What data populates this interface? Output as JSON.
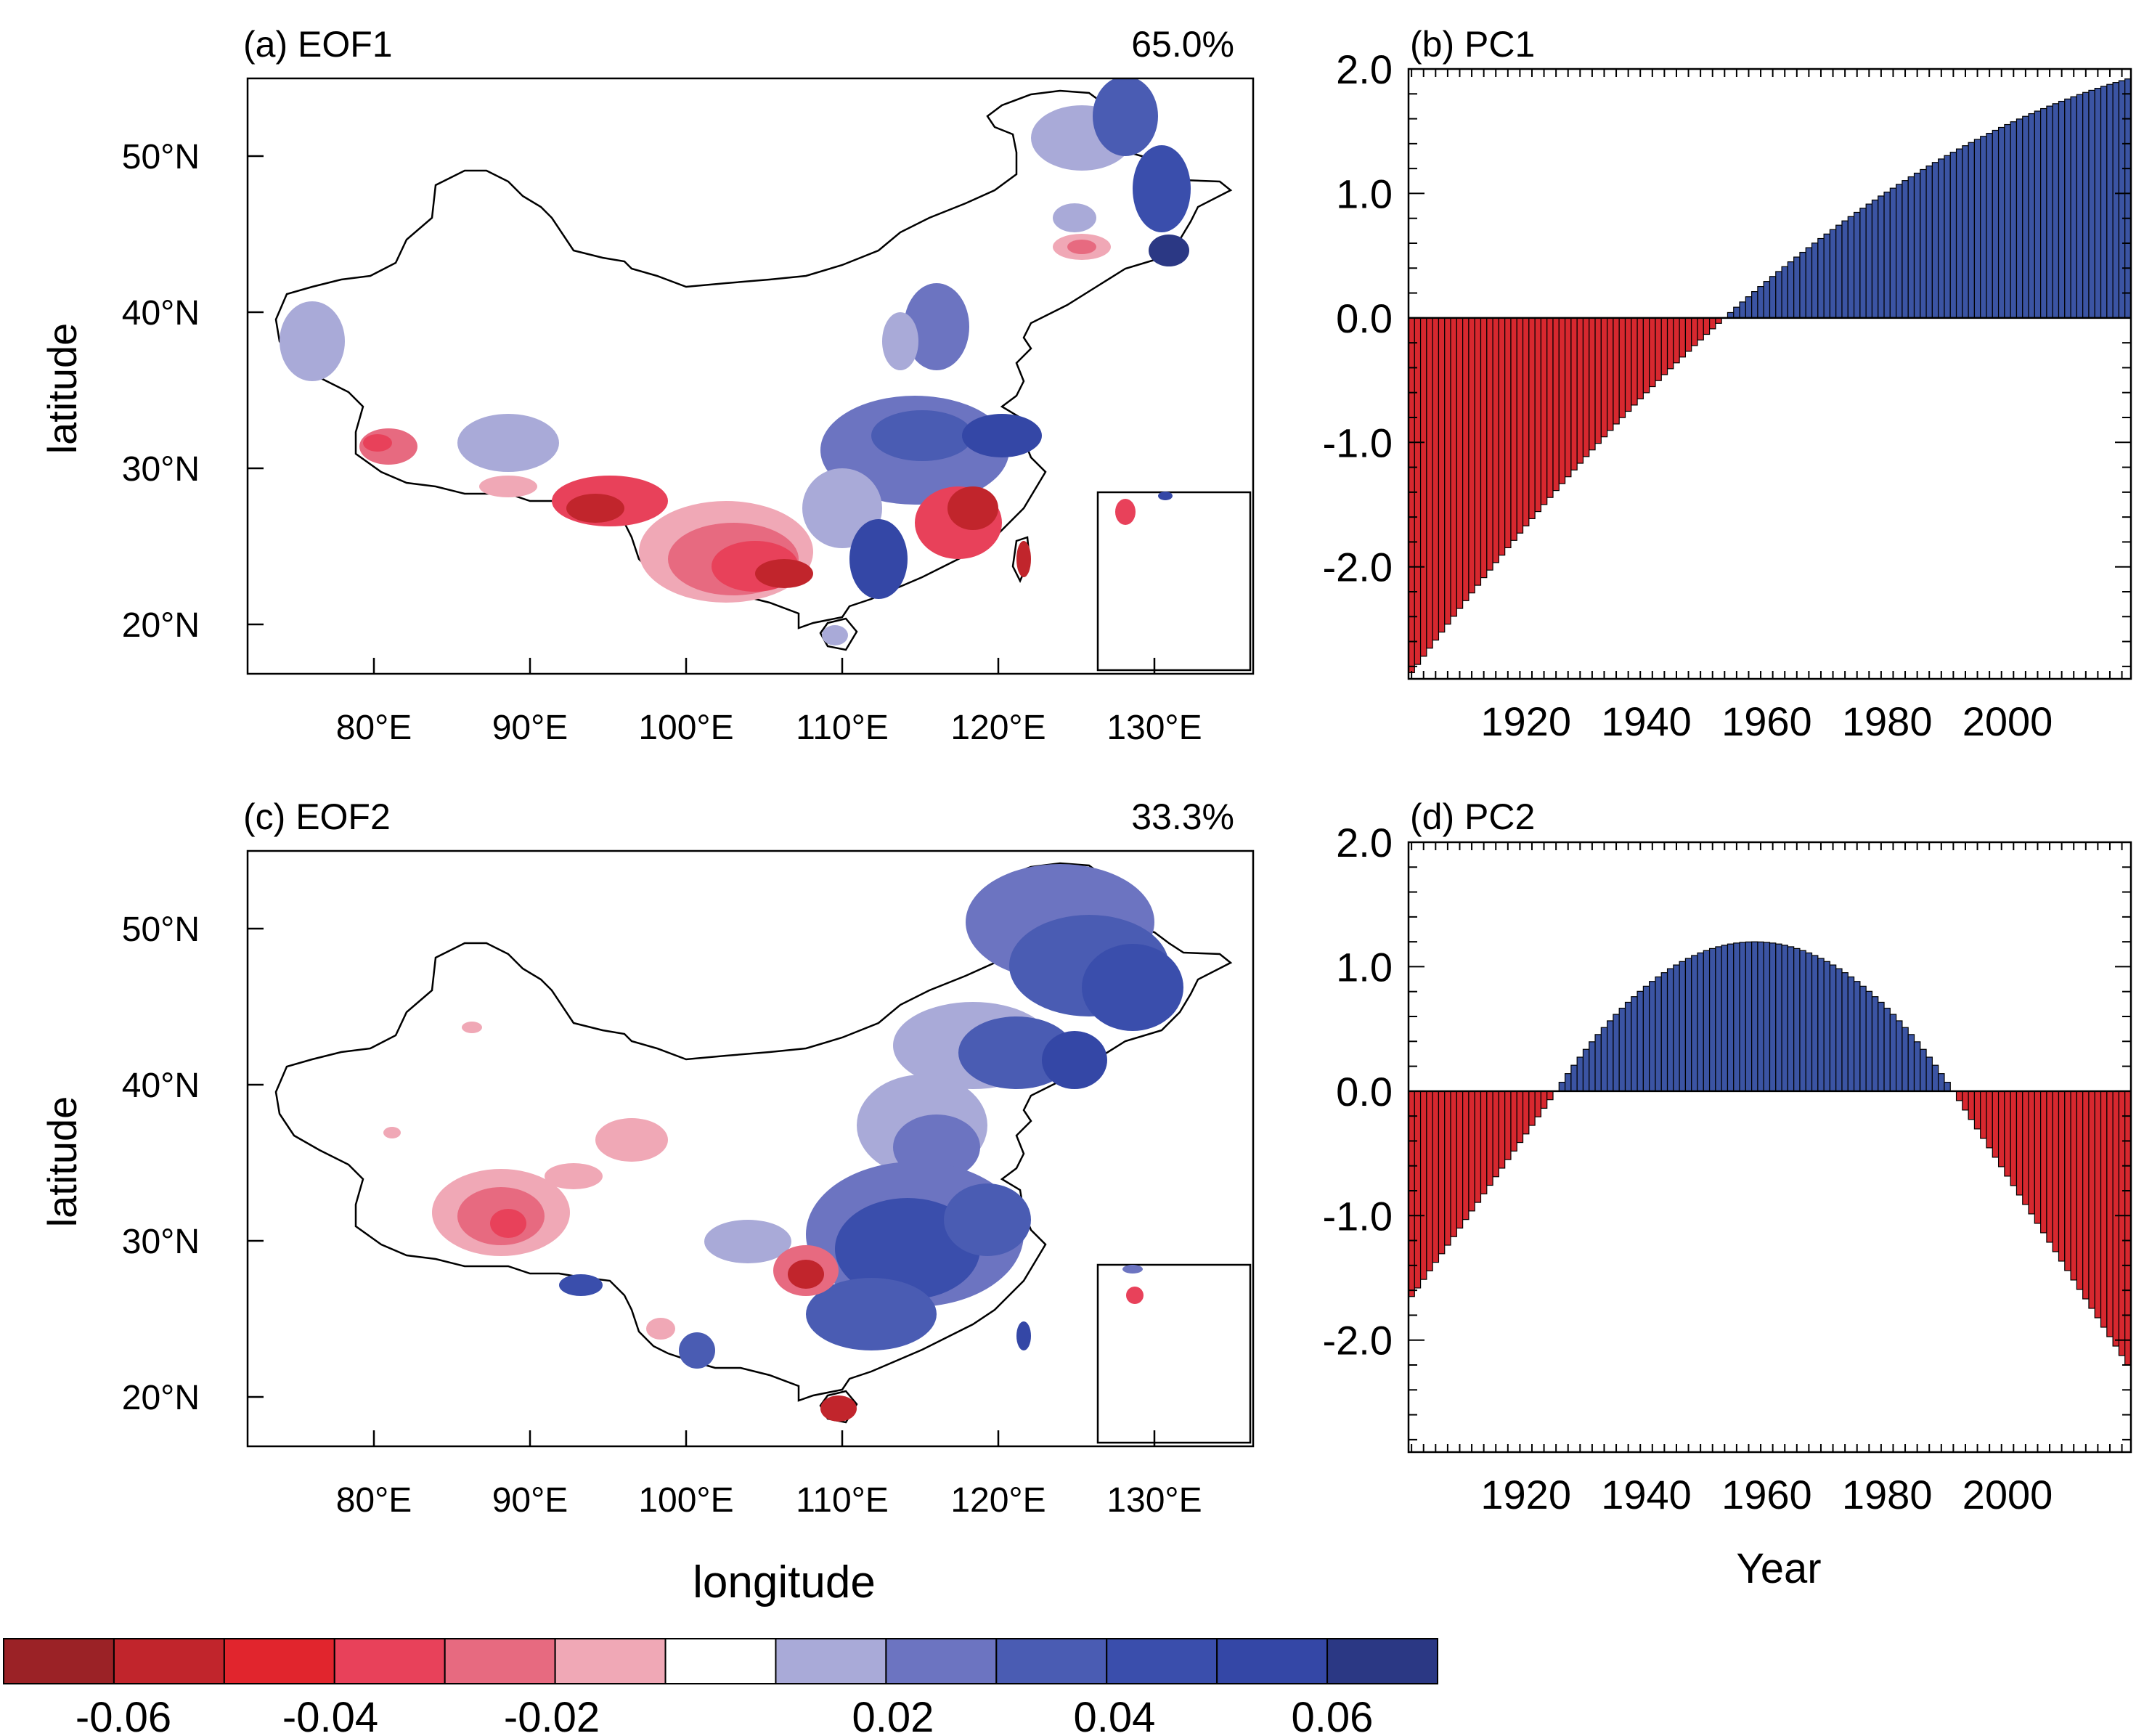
{
  "colors": {
    "red_bar": "#d7282f",
    "blue_bar": "#3b54a3",
    "outline": "#000000",
    "river": "#2b4ea0"
  },
  "colorbar": {
    "colors": [
      "#9b2226",
      "#c1252c",
      "#e1252d",
      "#e8415a",
      "#e76a80",
      "#f0a8b6",
      "#ffffff",
      "#a9aad8",
      "#6c74c1",
      "#4a5cb3",
      "#3a4eac",
      "#3447a6",
      "#2b3884"
    ],
    "labels": [
      "-0.06",
      "-0.04",
      "-0.02",
      "0.02",
      "0.04",
      "0.06"
    ]
  },
  "panels": {
    "a": {
      "label": "(a) EOF1",
      "pct": "65.0%",
      "ylabel": "latitude",
      "xlabel": ""
    },
    "b": {
      "label": "(b) PC1"
    },
    "c": {
      "label": "(c) EOF2",
      "pct": "33.3%",
      "ylabel": "latitude",
      "xlabel": "longitude"
    },
    "d": {
      "label": "(d) PC2",
      "xlabel": "Year"
    }
  },
  "map_ticks": {
    "lon": [
      "80°E",
      "90°E",
      "100°E",
      "110°E",
      "120°E",
      "130°E"
    ],
    "lat": [
      "50°N",
      "40°N",
      "30°N",
      "20°N"
    ]
  },
  "chart_data": [
    {
      "type": "bar",
      "panel": "(b) PC1",
      "x_range": [
        1901,
        2020
      ],
      "ylim": [
        -2.9,
        2.0
      ],
      "yticks": [
        "2.0",
        "1.0",
        "0.0",
        "-1.0",
        "-2.0"
      ],
      "xticks": [
        "1920",
        "1940",
        "1960",
        "1980",
        "2000"
      ],
      "shape": "quadratic",
      "key_points": [
        [
          1901,
          -2.85
        ],
        [
          1953,
          0.0
        ],
        [
          2020,
          1.92
        ]
      ]
    },
    {
      "type": "bar",
      "panel": "(d) PC2",
      "x_range": [
        1901,
        2020
      ],
      "ylim": [
        -2.9,
        2.0
      ],
      "yticks": [
        "2.0",
        "1.0",
        "0.0",
        "-1.0",
        "-2.0"
      ],
      "xticks": [
        "1920",
        "1940",
        "1960",
        "1980",
        "2000"
      ],
      "shape": "parabola",
      "key_points": [
        [
          1901,
          -1.65
        ],
        [
          1925,
          0.0
        ],
        [
          1958,
          1.2
        ],
        [
          1991,
          0.0
        ],
        [
          2020,
          -2.2
        ]
      ]
    }
  ]
}
